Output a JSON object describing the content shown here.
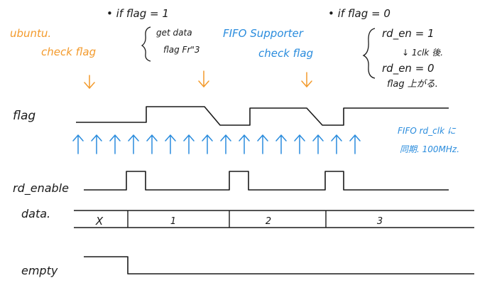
{
  "notes": {
    "left_orange_1": "ubuntu.",
    "left_orange_2": "check flag",
    "mid_condition": "• if flag = 1",
    "mid_line_1": "get data",
    "mid_line_2": "flag Fr\"3",
    "fifo_blue_1": "FIFO Supporter",
    "fifo_blue_2": "check flag",
    "right_condition": "• if flag = 0",
    "right_line_1": "rd_en = 1",
    "right_line_2": "↓ 1clk 後.",
    "right_line_3": "rd_en = 0",
    "right_line_4": "flag 上がる.",
    "clk_note_1": "FIFO rd_clk に",
    "clk_note_2": "同期. 100MHz."
  },
  "signals": {
    "flag": "flag",
    "rd_enable": "rd_enable",
    "data": "data.",
    "empty": "empty"
  },
  "data_bus": {
    "values": [
      "X",
      "1",
      "2",
      "3"
    ]
  },
  "clock": {
    "edge_count": 16
  },
  "colors": {
    "ink": "#1a1a1a",
    "orange": "#f39a2b",
    "blue": "#2a8cdd"
  }
}
